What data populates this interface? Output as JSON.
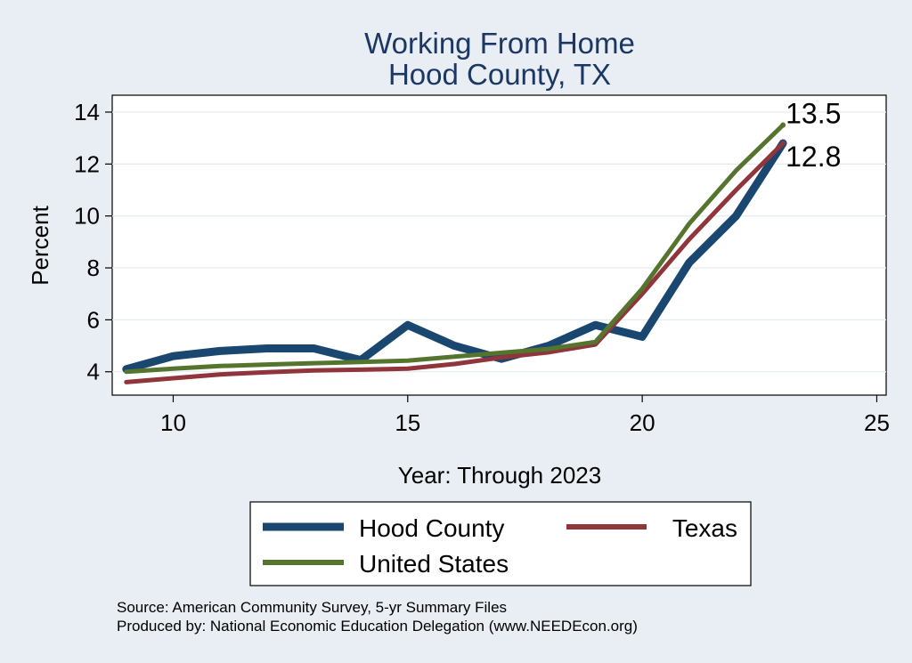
{
  "chart_data": {
    "type": "line",
    "title": [
      "Working From Home",
      "Hood County, TX"
    ],
    "xlabel": "Year: Through 2023",
    "ylabel": "Percent",
    "xlim": [
      8.7,
      25.2
    ],
    "ylim": [
      3.1,
      14.65
    ],
    "xticks": [
      10,
      15,
      20,
      25
    ],
    "yticks": [
      4,
      6,
      8,
      10,
      12,
      14
    ],
    "grid": true,
    "x": [
      9,
      10,
      11,
      12,
      13,
      14,
      15,
      16,
      17,
      18,
      19,
      20,
      21,
      22,
      23
    ],
    "series": [
      {
        "name": "Hood County",
        "color": "#1a476f",
        "values": [
          4.1,
          4.6,
          4.8,
          4.9,
          4.9,
          4.45,
          5.8,
          5.0,
          4.5,
          5.0,
          5.8,
          5.35,
          8.2,
          10.0,
          12.8
        ]
      },
      {
        "name": "Texas",
        "color": "#90353b",
        "values": [
          3.6,
          3.75,
          3.9,
          3.98,
          4.05,
          4.08,
          4.12,
          4.3,
          4.55,
          4.75,
          5.05,
          7.0,
          9.1,
          11.0,
          12.8
        ]
      },
      {
        "name": "United States",
        "color": "#55752f",
        "values": [
          4.0,
          4.12,
          4.22,
          4.28,
          4.33,
          4.38,
          4.43,
          4.58,
          4.73,
          4.88,
          5.15,
          7.2,
          9.7,
          11.75,
          13.5
        ]
      }
    ],
    "end_labels": [
      {
        "text": "13.5",
        "value": 13.5
      },
      {
        "text": "12.8",
        "value": 12.8
      }
    ],
    "legend": {
      "placement": "bottom",
      "items": [
        "Hood County",
        "Texas",
        "United States"
      ]
    },
    "notes": [
      "Source: American Community Survey, 5-yr Summary Files",
      "Produced by: National Economic Education Delegation (www.NEEDEcon.org)"
    ]
  }
}
